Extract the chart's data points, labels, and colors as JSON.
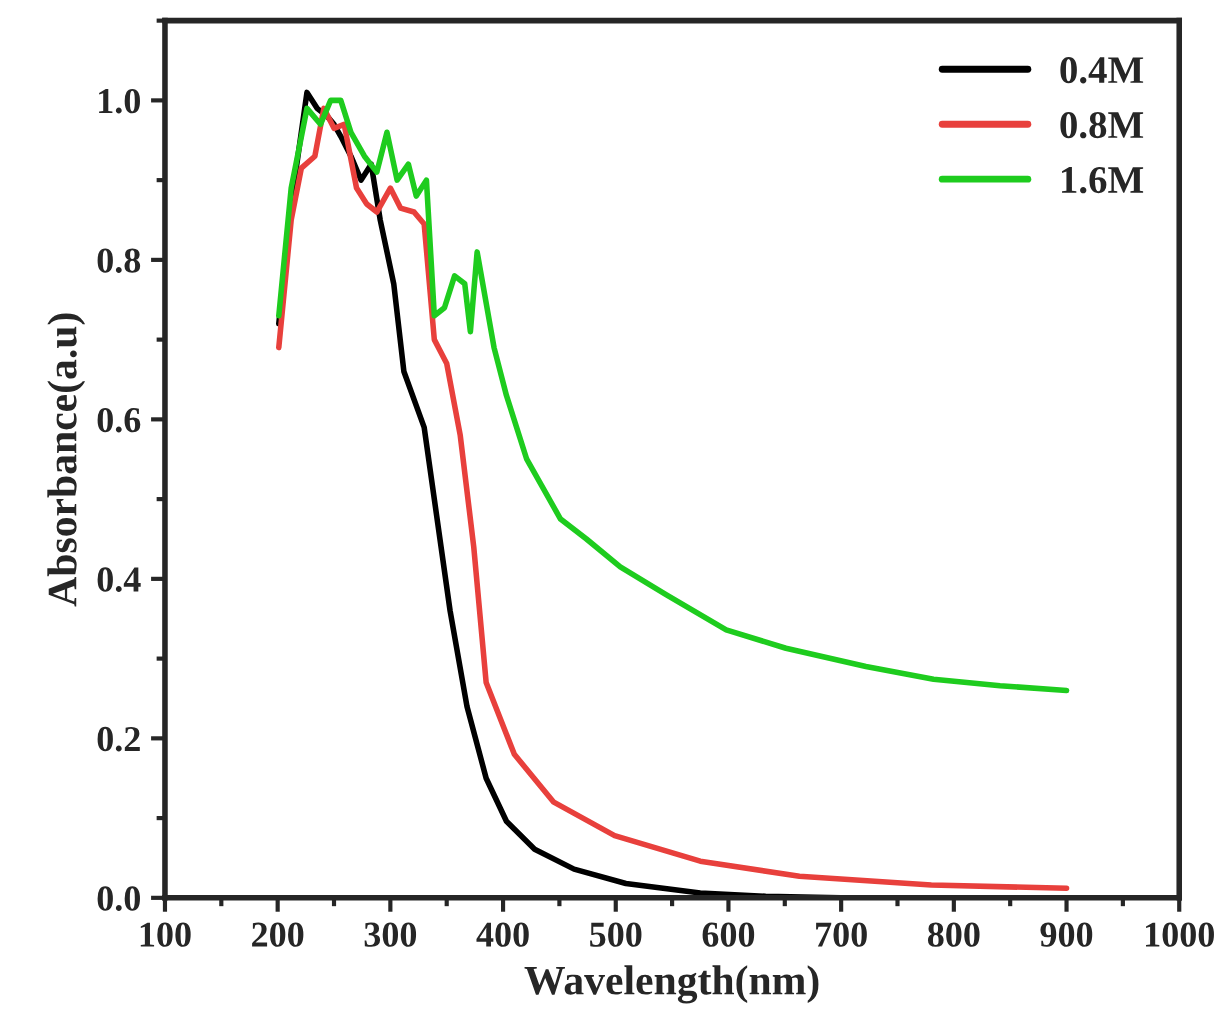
{
  "chart_data": {
    "type": "line",
    "xlabel": "Wavelength(nm)",
    "ylabel": "Absorbance(a.u)",
    "xlim": [
      100,
      1000
    ],
    "ylim": [
      0,
      1.1
    ],
    "xticks": [
      100,
      200,
      300,
      400,
      500,
      600,
      700,
      800,
      900,
      1000
    ],
    "yticks": [
      {
        "value": 0,
        "label": "0.0"
      },
      {
        "value": 0.2,
        "label": "0.2"
      },
      {
        "value": 0.4,
        "label": "0.4"
      },
      {
        "value": 0.6,
        "label": "0.6"
      },
      {
        "value": 0.8,
        "label": "0.8"
      },
      {
        "value": 1.0,
        "label": "1.0"
      }
    ],
    "legend": "top right",
    "grid": false,
    "marker": "none",
    "line_style": "solid",
    "series": [
      {
        "name": "0.4M",
        "color": "#000000",
        "x": [
          201,
          215,
          226,
          235,
          244,
          250,
          256,
          265,
          274,
          283,
          291,
          303,
          312,
          330,
          341,
          353,
          368,
          385,
          403,
          428,
          463,
          509,
          575,
          633,
          700,
          800,
          900
        ],
        "values": [
          0.72,
          0.9,
          1.01,
          0.99,
          0.98,
          0.97,
          0.955,
          0.93,
          0.9,
          0.92,
          0.85,
          0.77,
          0.66,
          0.59,
          0.48,
          0.36,
          0.24,
          0.15,
          0.096,
          0.061,
          0.036,
          0.018,
          0.006,
          0.002,
          0.0,
          0.0,
          0.0
        ]
      },
      {
        "name": "0.8M",
        "color": "#e8403c",
        "x": [
          201,
          212,
          221,
          233,
          241,
          250,
          259,
          270,
          279,
          288,
          300,
          309,
          321,
          330,
          339,
          350,
          362,
          374,
          385,
          410,
          445,
          499,
          575,
          663,
          780,
          900
        ],
        "values": [
          0.69,
          0.85,
          0.915,
          0.93,
          0.99,
          0.965,
          0.97,
          0.89,
          0.87,
          0.86,
          0.89,
          0.865,
          0.86,
          0.845,
          0.7,
          0.67,
          0.58,
          0.44,
          0.27,
          0.18,
          0.12,
          0.078,
          0.046,
          0.027,
          0.016,
          0.012
        ]
      },
      {
        "name": "1.6M",
        "color": "#1ecc1e",
        "x": [
          201,
          212,
          226,
          238,
          247,
          256,
          265,
          277,
          288,
          297,
          306,
          316,
          323,
          332,
          339,
          348,
          357,
          366,
          371,
          377,
          392,
          403,
          421,
          451,
          474,
          504,
          545,
          598,
          651,
          722,
          782,
          841,
          900
        ],
        "values": [
          0.73,
          0.89,
          0.99,
          0.97,
          1.0,
          1.0,
          0.96,
          0.93,
          0.91,
          0.96,
          0.9,
          0.92,
          0.88,
          0.9,
          0.73,
          0.74,
          0.78,
          0.77,
          0.71,
          0.81,
          0.69,
          0.63,
          0.55,
          0.475,
          0.45,
          0.415,
          0.38,
          0.336,
          0.313,
          0.29,
          0.274,
          0.266,
          0.26
        ]
      }
    ]
  }
}
